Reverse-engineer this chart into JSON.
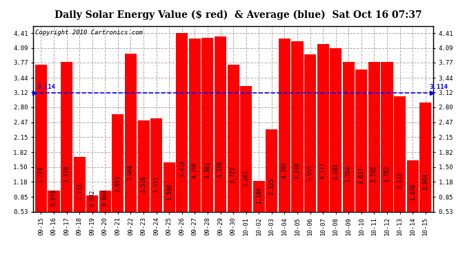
{
  "title": "Daily Solar Energy Value ($ red)  & Average (blue)  Sat Oct 16 07:37",
  "copyright": "Copyright 2010 Cartronics.com",
  "average": 3.114,
  "categories": [
    "09-15",
    "09-16",
    "09-17",
    "09-18",
    "09-19",
    "09-20",
    "09-21",
    "09-22",
    "09-23",
    "09-24",
    "09-25",
    "09-26",
    "09-27",
    "09-28",
    "09-29",
    "09-30",
    "10-01",
    "10-02",
    "10-03",
    "10-04",
    "10-05",
    "10-06",
    "10-07",
    "10-08",
    "10-09",
    "10-10",
    "10-11",
    "10-12",
    "10-13",
    "10-14",
    "10-15"
  ],
  "values": [
    3.724,
    0.979,
    3.778,
    1.715,
    0.882,
    0.984,
    2.651,
    3.964,
    2.516,
    2.551,
    1.596,
    4.414,
    4.296,
    4.301,
    4.338,
    3.723,
    3.263,
    1.19,
    2.325,
    4.3,
    4.24,
    3.955,
    4.177,
    4.085,
    3.784,
    3.627,
    3.79,
    3.782,
    3.033,
    1.648,
    2.904
  ],
  "bar_color": "#ff0000",
  "line_color": "#0000ff",
  "bg_color": "#ffffff",
  "grid_color": "#aaaaaa",
  "yticks": [
    0.53,
    0.85,
    1.18,
    1.5,
    1.82,
    2.15,
    2.47,
    2.8,
    3.12,
    3.44,
    3.77,
    4.09,
    4.41
  ],
  "ylim_min": 0.53,
  "ylim_max": 4.57,
  "title_fontsize": 10,
  "copyright_fontsize": 6.5,
  "label_fontsize": 5.8,
  "tick_fontsize": 6.5,
  "avg_label": "3.114"
}
